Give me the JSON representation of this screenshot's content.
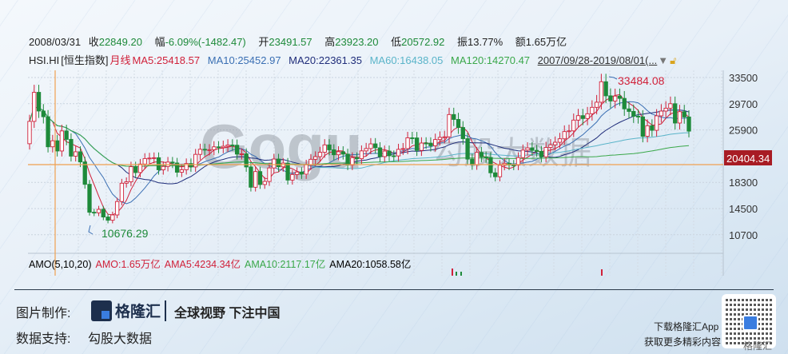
{
  "header": {
    "date": "2008/03/31",
    "close_label": "收",
    "close": "22849.20",
    "change_label": "幅",
    "change": "-6.09%(-1482.47)",
    "open_label": "开",
    "open": "23491.57",
    "high_label": "高",
    "high": "23923.20",
    "low_label": "低",
    "low": "20572.92",
    "amplitude_label": "振",
    "amplitude": "13.77%",
    "amount_label": "额",
    "amount": "1.65万亿"
  },
  "indicators": {
    "symbol": "HSI.HI",
    "name": "[恒生指数]",
    "period": "月线",
    "ma5": "MA5:25418.57",
    "ma10": "MA10:25452.97",
    "ma20": "MA20:22361.35",
    "ma60": "MA60:16438.05",
    "ma120": "MA120:14270.47",
    "range": "2007/09/28-2019/08/01(..."
  },
  "amo": {
    "title": "AMO(5,10,20)",
    "amo": "AMO:1.65万亿",
    "ama5": "AMA5:4234.34亿",
    "ama10": "AMA10:2117.17亿",
    "ama20": "AMA20:1058.58亿"
  },
  "footer": {
    "made_by_label": "图片制作:",
    "brand": "格隆汇",
    "slogan": "全球视野 下注中国",
    "data_label": "数据支持:",
    "data_source": "勾股大数据",
    "download": "下载格隆汇App",
    "more": "获取更多精彩内容",
    "qr_caption": "格隆汇"
  },
  "watermark": {
    "latin": "Gogu",
    "cn": "勾股大数据"
  },
  "colors": {
    "up": "#d0213a",
    "down": "#1e8a3a",
    "ma5": "#d0213a",
    "ma10": "#3a6fb3",
    "ma20": "#1f2d7a",
    "ma60": "#5ab4c9",
    "ma120": "#3aa84a",
    "crosshair": "#f0a050",
    "price_tag": "#a81c24"
  },
  "chart_data": {
    "type": "candlestick",
    "period": "monthly",
    "start": "2007/09",
    "end": "2019/08",
    "y_ticks": [
      33500,
      29700,
      25900,
      18300,
      14500,
      10700
    ],
    "ylim": [
      9000,
      34500
    ],
    "first_open": 23900,
    "closes": [
      27142,
      31352,
      28643,
      27812,
      23456,
      24331,
      22849,
      25755,
      24533,
      22102,
      22731,
      21261,
      18016,
      13969,
      13888,
      14387,
      13278,
      12811,
      13576,
      15520,
      18171,
      18378,
      20573,
      19724,
      20955,
      21752,
      21821,
      21873,
      20122,
      20609,
      21239,
      21108,
      19765,
      20129,
      21030,
      20536,
      22358,
      23096,
      23008,
      23035,
      23447,
      23338,
      23528,
      23720,
      23684,
      22398,
      22440,
      20535,
      17592,
      19864,
      17989,
      18434,
      20390,
      21680,
      20556,
      21094,
      18630,
      19441,
      19796,
      19482,
      20840,
      21642,
      22030,
      22657,
      23730,
      23020,
      22300,
      22737,
      22392,
      20803,
      21883,
      21731,
      22860,
      23206,
      23881,
      23306,
      22035,
      22837,
      22151,
      22134,
      23082,
      23191,
      24757,
      24742,
      22933,
      23998,
      23987,
      23605,
      24507,
      24823,
      24901,
      28133,
      27424,
      26250,
      24636,
      21671,
      20846,
      22640,
      21996,
      21914,
      19683,
      19112,
      20777,
      21067,
      20815,
      20794,
      21891,
      22977,
      23297,
      22935,
      22790,
      22001,
      23361,
      23741,
      24112,
      24615,
      25661,
      25765,
      27324,
      27970,
      27554,
      28246,
      29177,
      29919,
      32887,
      30845,
      30093,
      30808,
      30469,
      28955,
      28583,
      27889,
      27789,
      24980,
      26507,
      25846,
      27942,
      28633,
      29051,
      29699,
      26901,
      28543,
      27778,
      25725
    ],
    "annotations": {
      "max_label": "33484.08",
      "min_label": "10676.29",
      "price_line": "20404.34"
    },
    "crosshair_date": "2008/03/31"
  }
}
